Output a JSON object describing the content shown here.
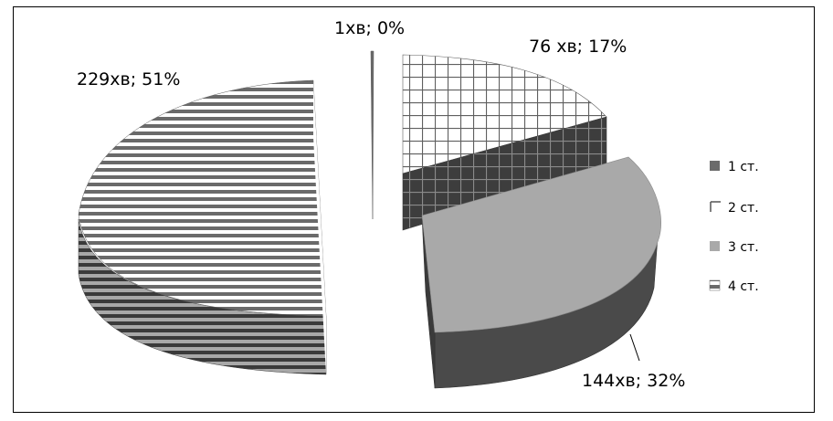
{
  "chart_data": {
    "type": "pie",
    "style": "3d-exploded",
    "categories": [
      "1 ст.",
      "2 ст.",
      "3 ст.",
      "4 ст."
    ],
    "values": [
      1,
      76,
      144,
      229
    ],
    "percents": [
      0,
      17,
      32,
      51
    ],
    "data_labels": [
      "1хв; 0%",
      "76 хв; 17%",
      "144хв; 32%",
      "229хв; 51%"
    ],
    "legend_position": "right",
    "title": "",
    "colors": {
      "slice_1": "#6b6b6b",
      "slice_2_pattern": "#5f5f5f",
      "slice_3": "#a9a9a9",
      "slice_4_pattern": "#6a6a6a",
      "side_dark": "#4a4a4a"
    }
  }
}
